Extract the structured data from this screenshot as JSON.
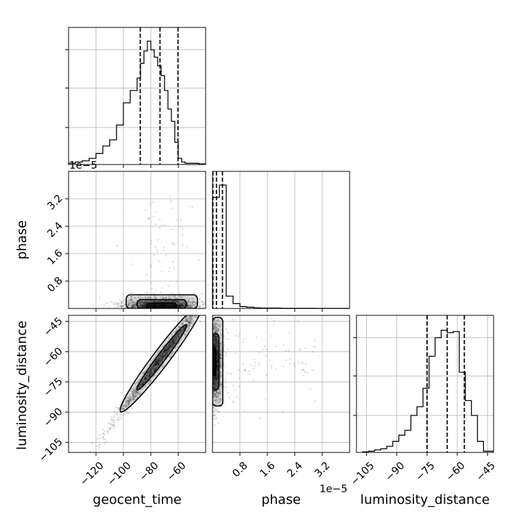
{
  "chart_data": {
    "type": "corner",
    "title": "",
    "parameters": [
      "geocent_time",
      "phase",
      "luminosity_distance"
    ],
    "grid": true,
    "phase_offset_label": "1e−5",
    "axes": {
      "geocent_time": {
        "range": [
          -140,
          -40
        ],
        "ticks": [
          -120,
          -100,
          -80,
          -60
        ],
        "tick_labels": [
          "−120",
          "−100",
          "−80",
          "−60"
        ]
      },
      "phase": {
        "range": [
          0,
          4e-05
        ],
        "ticks": [
          8e-06,
          1.6e-05,
          2.4e-05,
          3.2e-05
        ],
        "tick_labels": [
          "0.8",
          "1.6",
          "2.4",
          "3.2"
        ]
      },
      "luminosity_distance": {
        "range": [
          -110,
          -42
        ],
        "ticks": [
          -105,
          -90,
          -75,
          -60,
          -45
        ],
        "tick_labels": [
          "−105",
          "−90",
          "−75",
          "−60",
          "−45"
        ]
      }
    },
    "histograms": {
      "geocent_time": {
        "bin_edges": [
          -140,
          -135,
          -130,
          -125,
          -120,
          -115,
          -110,
          -105,
          -100,
          -95,
          -90,
          -87.5,
          -85,
          -82.5,
          -80,
          -77.5,
          -75,
          -72.5,
          -70,
          -67.5,
          -65,
          -62.5,
          -60,
          -57.5,
          -55,
          -50,
          -45,
          -40
        ],
        "counts": [
          0.01,
          0.02,
          0.03,
          0.05,
          0.09,
          0.15,
          0.2,
          0.32,
          0.5,
          0.6,
          0.7,
          0.82,
          0.92,
          1.0,
          0.93,
          0.87,
          0.8,
          0.72,
          0.6,
          0.45,
          0.35,
          0.18,
          0.05,
          0.02,
          0.01,
          0.01,
          0.005
        ],
        "quantiles": [
          -87.7,
          -73.3,
          -60.2
        ]
      },
      "phase": {
        "bin_edges": [
          0,
          2e-06,
          4e-06,
          6e-06,
          8e-06,
          1e-05,
          1.2e-05,
          1.4e-05,
          1.6e-05,
          2e-05,
          2.5e-05,
          3e-05,
          3.5e-05,
          4e-05
        ],
        "counts": [
          0.9,
          1.0,
          0.1,
          0.04,
          0.015,
          0.01,
          0.005,
          0.003,
          0.003,
          0.002,
          0.002,
          0.001,
          0.001
        ],
        "quantiles": [
          1.2e-07,
          1.15e-06,
          2.9e-06
        ]
      },
      "luminosity_distance": {
        "bin_edges": [
          -107,
          -104,
          -101,
          -98,
          -95,
          -92,
          -89,
          -86,
          -83,
          -80,
          -77,
          -74,
          -71,
          -68,
          -65,
          -62,
          -59,
          -56,
          -53,
          -50,
          -47,
          -44,
          -42
        ],
        "counts": [
          0.005,
          0.01,
          0.02,
          0.03,
          0.05,
          0.09,
          0.14,
          0.18,
          0.3,
          0.37,
          0.52,
          0.78,
          0.93,
          0.99,
          0.97,
          0.98,
          0.65,
          0.42,
          0.3,
          0.09,
          0.01,
          0.01
        ],
        "quantiles": [
          -75.0,
          -65.0,
          -56.5
        ]
      }
    },
    "density_2d": {
      "geocent_time_vs_phase": {
        "center": [
          -72,
          1.4e-06
        ],
        "spread": [
          14,
          1.5e-06
        ]
      },
      "geocent_time_vs_luminosity_distance": {
        "center": [
          -72,
          -63
        ],
        "correlation": 0.98,
        "line": {
          "slope": 0.9,
          "intercept": 2
        }
      },
      "phase_vs_luminosity_distance": {
        "center": [
          1.2e-06,
          -65
        ],
        "spread": [
          1.3e-06,
          10
        ]
      }
    }
  }
}
